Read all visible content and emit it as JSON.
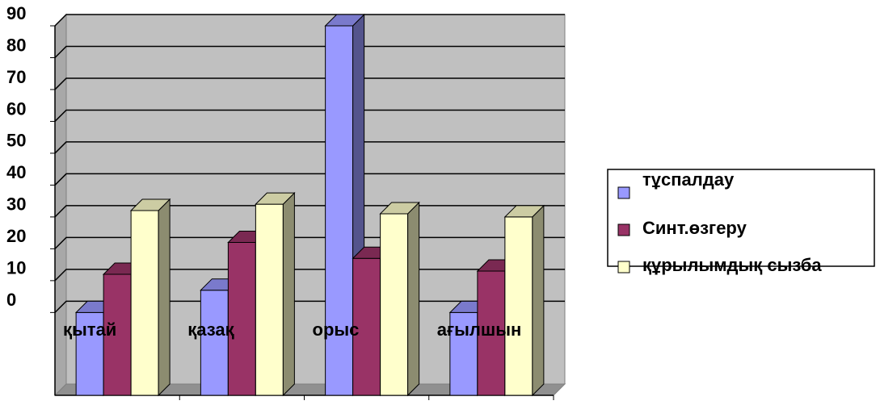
{
  "chart_data": {
    "type": "bar3d",
    "categories": [
      "қытай",
      "қазақ",
      "орыс",
      "ағылшын"
    ],
    "series": [
      {
        "name": "тұспалдау",
        "color": "#9999ff",
        "values": [
          0,
          7,
          90,
          0
        ]
      },
      {
        "name": "Синт.өзгеру",
        "color": "#993366",
        "values": [
          12,
          22,
          17,
          13
        ]
      },
      {
        "name": "құрылымдық сызба",
        "color": "#ffffcc",
        "values": [
          32,
          34,
          31,
          30
        ]
      }
    ],
    "ylim": [
      -26,
      90
    ],
    "yticks": [
      0,
      10,
      20,
      30,
      40,
      50,
      60,
      70,
      80,
      90
    ],
    "grid": true,
    "legend": "right",
    "background": "#c0c0c0"
  }
}
